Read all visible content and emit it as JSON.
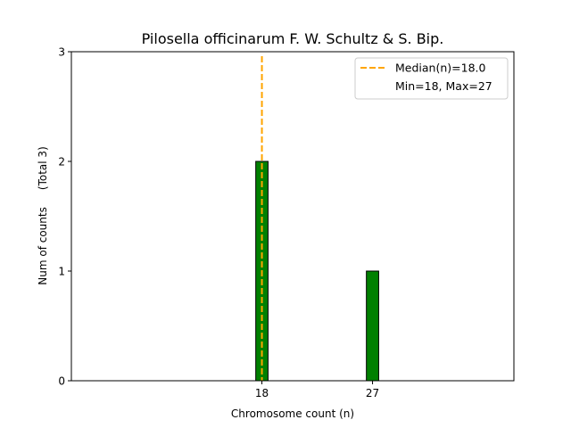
{
  "chart_data": {
    "type": "bar",
    "title": "Pilosella officinarum F. W. Schultz & S. Bip.",
    "xlabel": "Chromosome count (n)",
    "ylabel": "Num of counts     (Total 3)",
    "x": [
      18,
      27
    ],
    "values": [
      2,
      1
    ],
    "xlim": [
      2.5,
      38.5
    ],
    "ylim": [
      0,
      3
    ],
    "xticks": [
      18,
      27
    ],
    "yticks": [
      0,
      1,
      2,
      3
    ],
    "bar_color": "#008000",
    "bar_edge_color": "#000000",
    "median": {
      "value": 18.0,
      "label": "Median(n)=18.0",
      "color": "#FFA500"
    },
    "range_label": "Min=18, Max=27",
    "legend_position": "top-right",
    "grid": false
  }
}
